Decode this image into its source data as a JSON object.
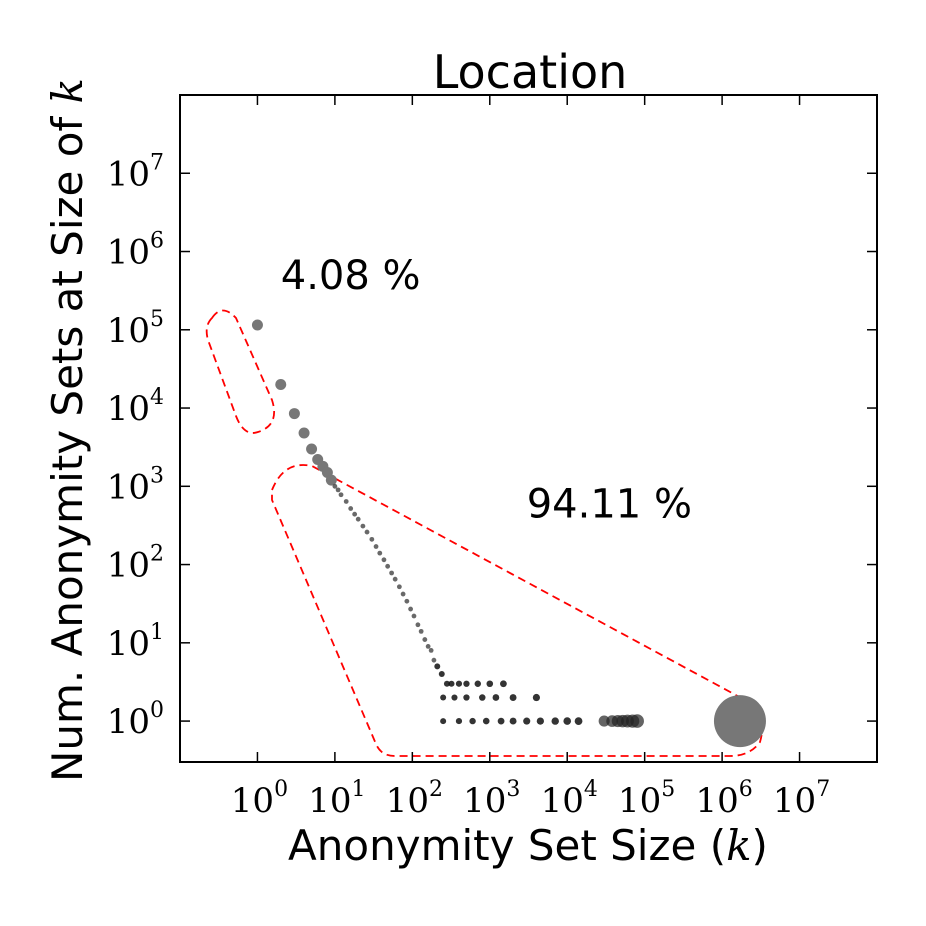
{
  "chart_data": {
    "type": "scatter",
    "title": "Location",
    "xlabel": "Anonymity Set Size (k)",
    "ylabel": "Num. Anonymity Sets at Size of k",
    "xscale": "log",
    "yscale": "log",
    "xlim": [
      0.1,
      100000000
    ],
    "ylim": [
      0.3,
      100000000
    ],
    "x_ticks": [
      {
        "base": "10",
        "exp": "0",
        "value": 1
      },
      {
        "base": "10",
        "exp": "1",
        "value": 10
      },
      {
        "base": "10",
        "exp": "2",
        "value": 100
      },
      {
        "base": "10",
        "exp": "3",
        "value": 1000
      },
      {
        "base": "10",
        "exp": "4",
        "value": 10000
      },
      {
        "base": "10",
        "exp": "5",
        "value": 100000
      },
      {
        "base": "10",
        "exp": "6",
        "value": 1000000
      },
      {
        "base": "10",
        "exp": "7",
        "value": 10000000
      }
    ],
    "y_ticks": [
      {
        "base": "10",
        "exp": "0",
        "value": 1
      },
      {
        "base": "10",
        "exp": "1",
        "value": 10
      },
      {
        "base": "10",
        "exp": "2",
        "value": 100
      },
      {
        "base": "10",
        "exp": "3",
        "value": 1000
      },
      {
        "base": "10",
        "exp": "4",
        "value": 10000
      },
      {
        "base": "10",
        "exp": "5",
        "value": 100000
      },
      {
        "base": "10",
        "exp": "6",
        "value": 1000000
      },
      {
        "base": "10",
        "exp": "7",
        "value": 10000000
      }
    ],
    "marker_color": "#777777",
    "point_size_note": "marker area grows with k",
    "points": [
      [
        1,
        115000
      ],
      [
        2,
        20000
      ],
      [
        3,
        8500
      ],
      [
        4,
        4800
      ],
      [
        5,
        3000
      ],
      [
        6,
        2200
      ],
      [
        7,
        1800
      ],
      [
        8,
        1500
      ],
      [
        9,
        1200
      ],
      [
        10,
        1000
      ],
      [
        11,
        900
      ],
      [
        12,
        780
      ],
      [
        14,
        640
      ],
      [
        16,
        520
      ],
      [
        18,
        440
      ],
      [
        20,
        380
      ],
      [
        23,
        310
      ],
      [
        26,
        260
      ],
      [
        30,
        210
      ],
      [
        34,
        170
      ],
      [
        38,
        140
      ],
      [
        43,
        115
      ],
      [
        48,
        95
      ],
      [
        54,
        78
      ],
      [
        60,
        65
      ],
      [
        68,
        52
      ],
      [
        76,
        42
      ],
      [
        85,
        34
      ],
      [
        95,
        27
      ],
      [
        105,
        22
      ],
      [
        118,
        17
      ],
      [
        130,
        14
      ],
      [
        145,
        11
      ],
      [
        160,
        9
      ],
      [
        175,
        8
      ],
      [
        190,
        6
      ],
      [
        210,
        5
      ],
      [
        240,
        4
      ],
      [
        280,
        3
      ],
      [
        320,
        3
      ],
      [
        400,
        3
      ],
      [
        500,
        3
      ],
      [
        700,
        3
      ],
      [
        1000,
        3
      ],
      [
        1500,
        3
      ],
      [
        250,
        2
      ],
      [
        350,
        2
      ],
      [
        500,
        2
      ],
      [
        800,
        2
      ],
      [
        1200,
        2
      ],
      [
        2000,
        2
      ],
      [
        4000,
        2
      ],
      [
        250,
        1
      ],
      [
        400,
        1
      ],
      [
        600,
        1
      ],
      [
        900,
        1
      ],
      [
        1400,
        1
      ],
      [
        2000,
        1
      ],
      [
        3000,
        1
      ],
      [
        4500,
        1
      ],
      [
        7000,
        1
      ],
      [
        10000,
        1
      ],
      [
        14000,
        1
      ],
      [
        30000,
        1
      ],
      [
        38000,
        1
      ],
      [
        45000,
        1
      ],
      [
        52000,
        1
      ],
      [
        60000,
        1
      ],
      [
        70000,
        1
      ],
      [
        80000,
        1
      ],
      [
        1700000,
        1
      ]
    ],
    "annotations": [
      {
        "text": "4.08 %",
        "x": 2,
        "y": 500000
      },
      {
        "text": "94.11 %",
        "x": 3000,
        "y": 600
      }
    ],
    "highlight_regions": [
      {
        "color": "#ff0000",
        "style": "dashed",
        "group": "4.08 %"
      },
      {
        "color": "#ff0000",
        "style": "dashed",
        "group": "94.11 %"
      }
    ]
  }
}
